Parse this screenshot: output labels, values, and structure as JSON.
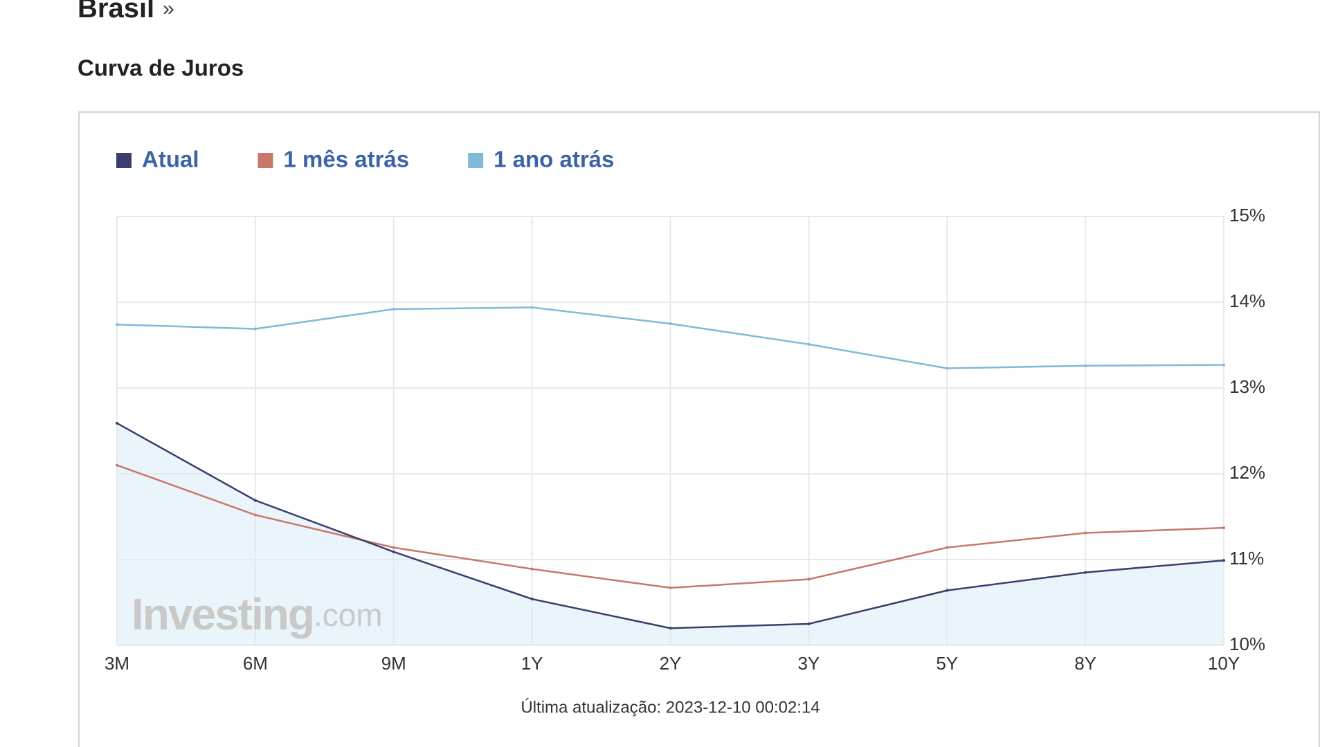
{
  "page": {
    "heading": "Brasil",
    "heading_suffix": "»",
    "subheading": "Curva de Juros"
  },
  "chart_data": {
    "type": "line",
    "categories": [
      "3M",
      "6M",
      "9M",
      "1Y",
      "2Y",
      "3Y",
      "5Y",
      "8Y",
      "10Y"
    ],
    "series": [
      {
        "name": "Atual",
        "color": "#3a3e6c",
        "area_color": "#eaf4fb",
        "values": [
          12.59,
          11.69,
          11.09,
          10.54,
          10.2,
          10.25,
          10.64,
          10.85,
          10.99
        ]
      },
      {
        "name": "1 mês atrás",
        "color": "#c8786a",
        "values": [
          12.1,
          11.52,
          11.14,
          10.89,
          10.67,
          10.77,
          11.14,
          11.31,
          11.37
        ]
      },
      {
        "name": "1 ano atrás",
        "color": "#7fbad8",
        "values": [
          13.74,
          13.69,
          13.92,
          13.94,
          13.75,
          13.51,
          13.23,
          13.26,
          13.27
        ]
      }
    ],
    "ylim": [
      10,
      15
    ],
    "yticks": [
      {
        "value": 10,
        "label": "10%"
      },
      {
        "value": 11,
        "label": "11%"
      },
      {
        "value": 12,
        "label": "12%"
      },
      {
        "value": 13,
        "label": "13%"
      },
      {
        "value": 14,
        "label": "14%"
      },
      {
        "value": 15,
        "label": "15%"
      }
    ],
    "y_axis_side": "right",
    "grid": true,
    "watermark": {
      "brand": "Investing",
      "suffix": ".com"
    },
    "footer": "Última atualização: 2023-12-10 00:02:14"
  }
}
